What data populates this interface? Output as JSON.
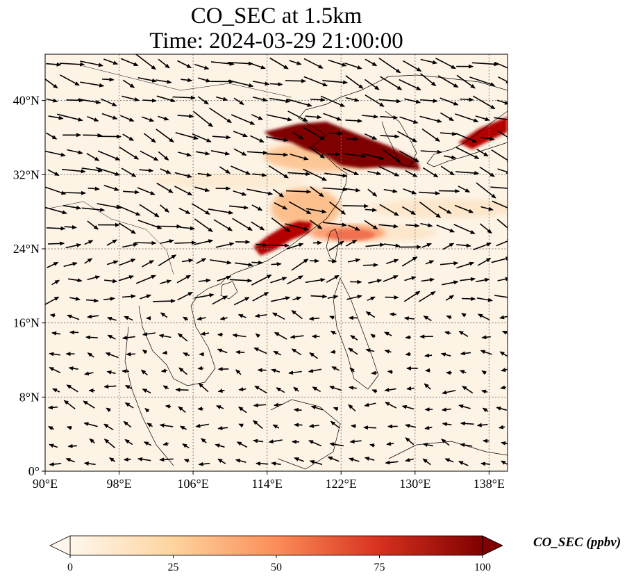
{
  "title": {
    "line1": "CO_SEC at 1.5km",
    "line2": "Time: 2024-03-29 21:00:00"
  },
  "map": {
    "lon_range": [
      90,
      140
    ],
    "lat_range": [
      0,
      45
    ],
    "lon_ticks": [
      "90°E",
      "98°E",
      "106°E",
      "114°E",
      "122°E",
      "130°E",
      "138°E"
    ],
    "lat_ticks": [
      "0°",
      "8°N",
      "16°N",
      "24°N",
      "32°N",
      "40°N"
    ],
    "gridlines": true,
    "wind_vectors": true
  },
  "colorbar": {
    "label": "CO_SEC (ppbv)",
    "ticks": [
      "0",
      "25",
      "50",
      "75",
      "100"
    ],
    "min": 0,
    "max": 100,
    "colormap": "OrRd",
    "extend": "both"
  },
  "colors": {
    "background": "#fdf4e6",
    "low": "#fff7ec",
    "mid": "#fc8d59",
    "high": "#7f0000"
  }
}
